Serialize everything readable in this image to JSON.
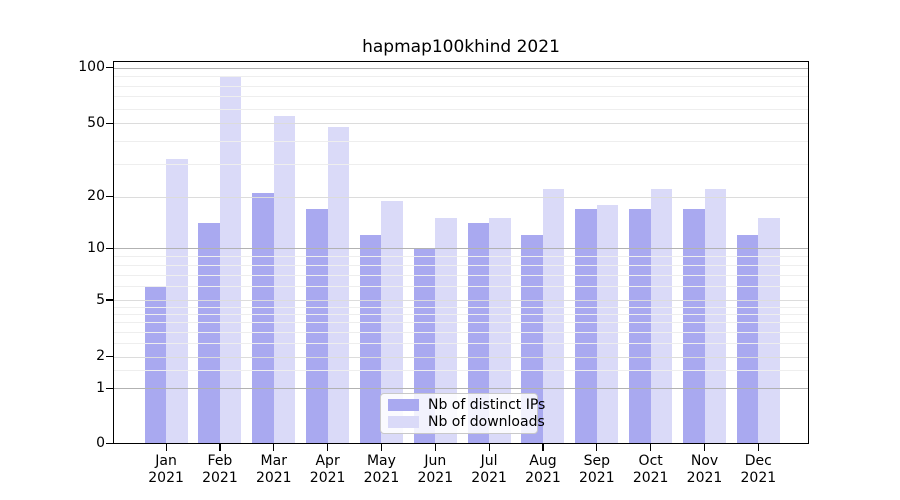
{
  "title": "hapmap100khind 2021",
  "chart_data": {
    "type": "bar",
    "title": "hapmap100khind 2021",
    "categories": [
      "Jan",
      "Feb",
      "Mar",
      "Apr",
      "May",
      "Jun",
      "Jul",
      "Aug",
      "Sep",
      "Oct",
      "Nov",
      "Dec"
    ],
    "category_year": "2021",
    "series": [
      {
        "name": "Nb of distinct IPs",
        "color": "#a9a9f0",
        "values": [
          6,
          14,
          21,
          17,
          12,
          10,
          14,
          12,
          17,
          17,
          17,
          12
        ]
      },
      {
        "name": "Nb of downloads",
        "color": "#dadaf8",
        "values": [
          32,
          90,
          55,
          48,
          19,
          15,
          15,
          22,
          18,
          22,
          22,
          15
        ]
      }
    ],
    "yscale": "asinh",
    "ylim": [
      0,
      107
    ],
    "yticks": [
      0,
      1,
      2,
      5,
      10,
      20,
      50,
      100
    ],
    "strong_gridline_ticks": [
      1,
      10,
      100
    ],
    "minor_yticks": [
      1.5,
      2.5,
      3,
      3.5,
      4,
      4.5,
      6,
      7,
      8,
      9,
      30,
      40,
      60,
      70,
      80,
      90
    ],
    "grid": true,
    "grid_over_bars": true,
    "legend_position": "lower center"
  },
  "colors": {
    "background": "#ffffff",
    "bar_dark": "#a9a9f0",
    "bar_light": "#dadaf8",
    "gridline_strong": "#b2b2b2",
    "gridline_labeled": "#dcdcdc",
    "gridline_minor": "#eeeeee",
    "spine": "#000000",
    "legend_border": "#c9c9c9"
  }
}
